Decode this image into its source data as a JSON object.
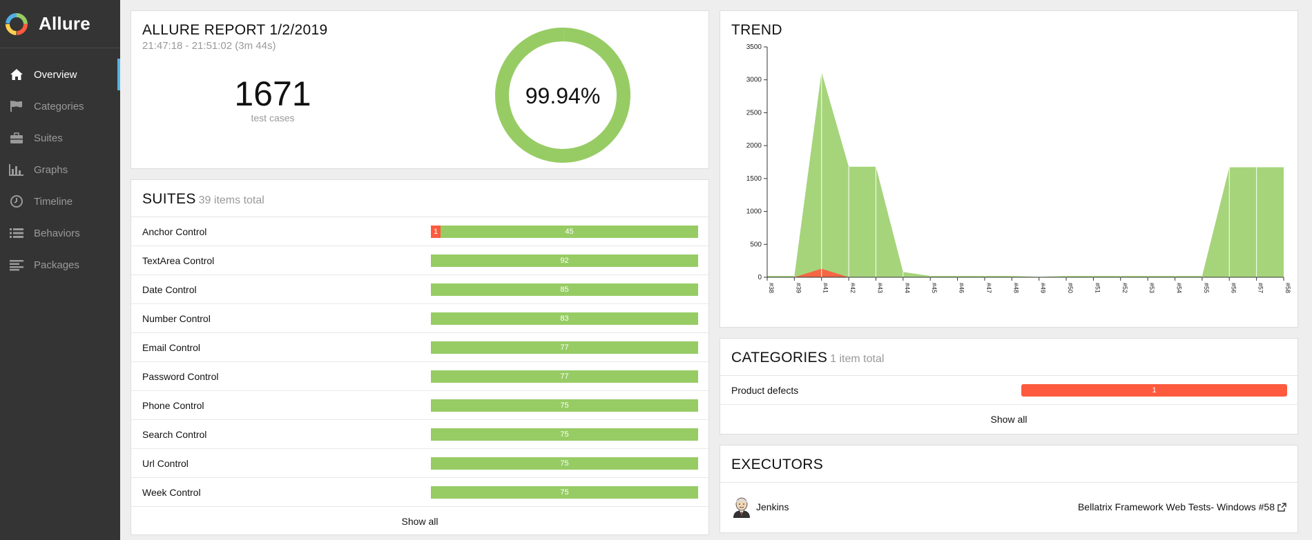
{
  "app": {
    "name": "Allure"
  },
  "sidebar": {
    "items": [
      {
        "label": "Overview",
        "icon": "home-icon",
        "active": true
      },
      {
        "label": "Categories",
        "icon": "flag-icon"
      },
      {
        "label": "Suites",
        "icon": "briefcase-icon"
      },
      {
        "label": "Graphs",
        "icon": "bar-chart-icon"
      },
      {
        "label": "Timeline",
        "icon": "clock-icon"
      },
      {
        "label": "Behaviors",
        "icon": "list-icon"
      },
      {
        "label": "Packages",
        "icon": "align-left-icon"
      }
    ]
  },
  "summary": {
    "title": "ALLURE REPORT 1/2/2019",
    "time_range": "21:47:18 - 21:51:02 (3m 44s)",
    "total": "1671",
    "total_label": "test cases",
    "success_rate": "99.94%",
    "success_fraction": 0.9994
  },
  "suites": {
    "title": "SUITES",
    "count_label": "39 items total",
    "show_all": "Show all",
    "rows": [
      {
        "name": "Anchor Control",
        "failed": "1",
        "passed": "45"
      },
      {
        "name": "TextArea Control",
        "passed": "92"
      },
      {
        "name": "Date Control",
        "passed": "85"
      },
      {
        "name": "Number Control",
        "passed": "83"
      },
      {
        "name": "Email Control",
        "passed": "77"
      },
      {
        "name": "Password Control",
        "passed": "77"
      },
      {
        "name": "Phone Control",
        "passed": "75"
      },
      {
        "name": "Search Control",
        "passed": "75"
      },
      {
        "name": "Url Control",
        "passed": "75"
      },
      {
        "name": "Week Control",
        "passed": "75"
      }
    ]
  },
  "trend": {
    "title": "TREND"
  },
  "chart_data": {
    "type": "area",
    "categories": [
      "#38",
      "#39",
      "#41",
      "#42",
      "#43",
      "#44",
      "#45",
      "#46",
      "#47",
      "#48",
      "#49",
      "#50",
      "#51",
      "#52",
      "#53",
      "#54",
      "#55",
      "#56",
      "#57",
      "#58"
    ],
    "series": [
      {
        "values": [
          20,
          20,
          3120,
          1680,
          1680,
          80,
          20,
          20,
          20,
          20,
          5,
          20,
          20,
          20,
          20,
          20,
          20,
          1670,
          1671,
          1671
        ]
      },
      {
        "values": [
          0,
          0,
          130,
          0,
          0,
          0,
          0,
          0,
          0,
          0,
          0,
          0,
          0,
          0,
          0,
          0,
          0,
          1,
          0,
          1
        ]
      }
    ],
    "colors": [
      "#97cc64",
      "#fd5a3e"
    ],
    "yticks": [
      0,
      500,
      1000,
      1500,
      2000,
      2500,
      3000,
      3500
    ],
    "ylim": [
      0,
      3500
    ],
    "grid": false
  },
  "categories": {
    "title": "CATEGORIES",
    "count_label": "1 item total",
    "show_all": "Show all",
    "rows": [
      {
        "name": "Product defects",
        "value": "1"
      }
    ]
  },
  "executors": {
    "title": "EXECUTORS",
    "rows": [
      {
        "name": "Jenkins",
        "build": "Bellatrix Framework Web Tests- Windows #58"
      }
    ]
  },
  "colors": {
    "passed": "#97cc64",
    "failed": "#fd5a3e",
    "sidebar": "#343434",
    "accent": "#57b2e6"
  }
}
